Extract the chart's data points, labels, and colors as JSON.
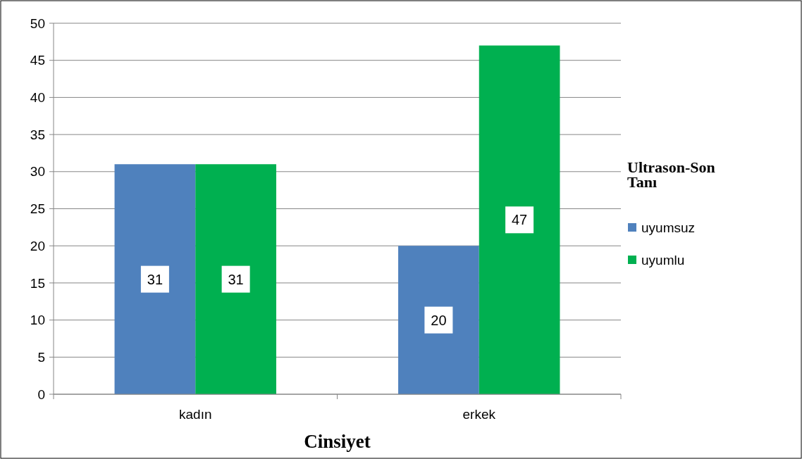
{
  "chart_data": {
    "type": "bar",
    "xlabel": "Cinsiyet",
    "legend_title": "Ultrason-Son Tanı",
    "categories": [
      "kadın",
      "erkek"
    ],
    "series": [
      {
        "name": "uyumsuz",
        "color": "#4f81bd",
        "values": [
          31,
          20
        ]
      },
      {
        "name": "uyumlu",
        "color": "#00b050",
        "values": [
          31,
          47
        ]
      }
    ],
    "ylim": [
      0,
      50
    ],
    "yticks": [
      0,
      5,
      10,
      15,
      20,
      25,
      30,
      35,
      40,
      45,
      50
    ],
    "grid": "y",
    "legend": "right",
    "data_labels": true
  }
}
